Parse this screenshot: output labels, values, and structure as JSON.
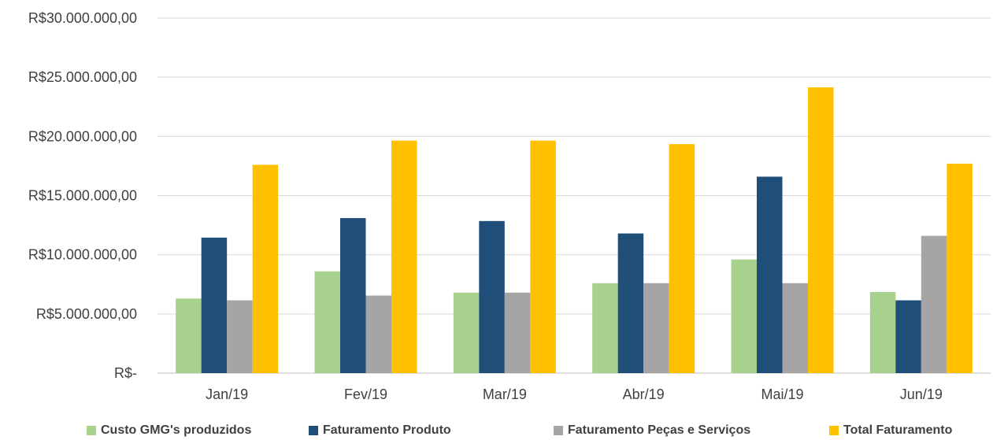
{
  "chart_data": {
    "type": "bar",
    "categories": [
      "Jan/19",
      "Fev/19",
      "Mar/19",
      "Abr/19",
      "Mai/19",
      "Jun/19"
    ],
    "series": [
      {
        "name": "Custo GMG's produzidos",
        "color": "#a9d18e",
        "values": [
          6300000,
          8600000,
          6800000,
          7600000,
          9600000,
          6850000
        ]
      },
      {
        "name": "Faturamento Produto",
        "color": "#1f4e79",
        "values": [
          11450000,
          13100000,
          12850000,
          11800000,
          16600000,
          6150000
        ]
      },
      {
        "name": "Faturamento Peças e Serviços",
        "color": "#a5a5a5",
        "values": [
          6150000,
          6550000,
          6800000,
          7600000,
          7600000,
          11600000
        ]
      },
      {
        "name": "Total Faturamento",
        "color": "#ffc000",
        "values": [
          17600000,
          19650000,
          19650000,
          19350000,
          24150000,
          17700000
        ]
      }
    ],
    "ylim": [
      0,
      30000000
    ],
    "yticks": [
      0,
      5000000,
      10000000,
      15000000,
      20000000,
      25000000,
      30000000
    ],
    "ytick_labels": [
      "R$-",
      "R$5.000.000,00",
      "R$10.000.000,00",
      "R$15.000.000,00",
      "R$20.000.000,00",
      "R$25.000.000,00",
      "R$30.000.000,00"
    ],
    "grid": true,
    "legend_position": "bottom",
    "title": "",
    "xlabel": "",
    "ylabel": ""
  },
  "legend": {
    "items": [
      {
        "label": "Custo GMG's produzidos",
        "color": "#a9d18e"
      },
      {
        "label": "Faturamento Produto",
        "color": "#1f4e79"
      },
      {
        "label": "Faturamento Peças e Serviços",
        "color": "#a5a5a5"
      },
      {
        "label": "Total Faturamento",
        "color": "#ffc000"
      }
    ]
  }
}
